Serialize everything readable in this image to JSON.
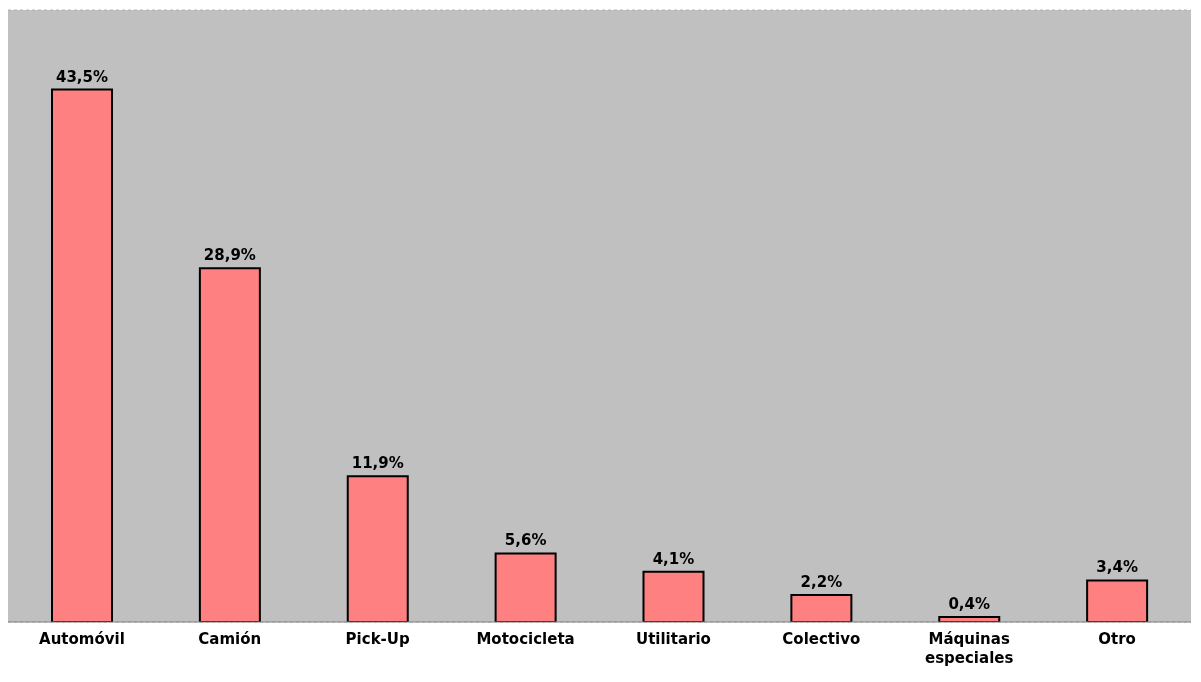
{
  "chart_data": {
    "type": "bar",
    "categories": [
      "Automóvil",
      "Camión",
      "Pick-Up",
      "Motocicleta",
      "Utilitario",
      "Colectivo",
      "Máquinas especiales",
      "Otro"
    ],
    "values": [
      43.5,
      28.9,
      11.9,
      5.6,
      4.1,
      2.2,
      0.4,
      3.4
    ],
    "value_labels": [
      "43,5%",
      "28,9%",
      "11,9%",
      "5,6%",
      "4,1%",
      "2,2%",
      "0,4%",
      "3,4%"
    ],
    "color": "#ff8080",
    "ylim": [
      0,
      50
    ],
    "grid": "y",
    "tick_labels": "x"
  }
}
